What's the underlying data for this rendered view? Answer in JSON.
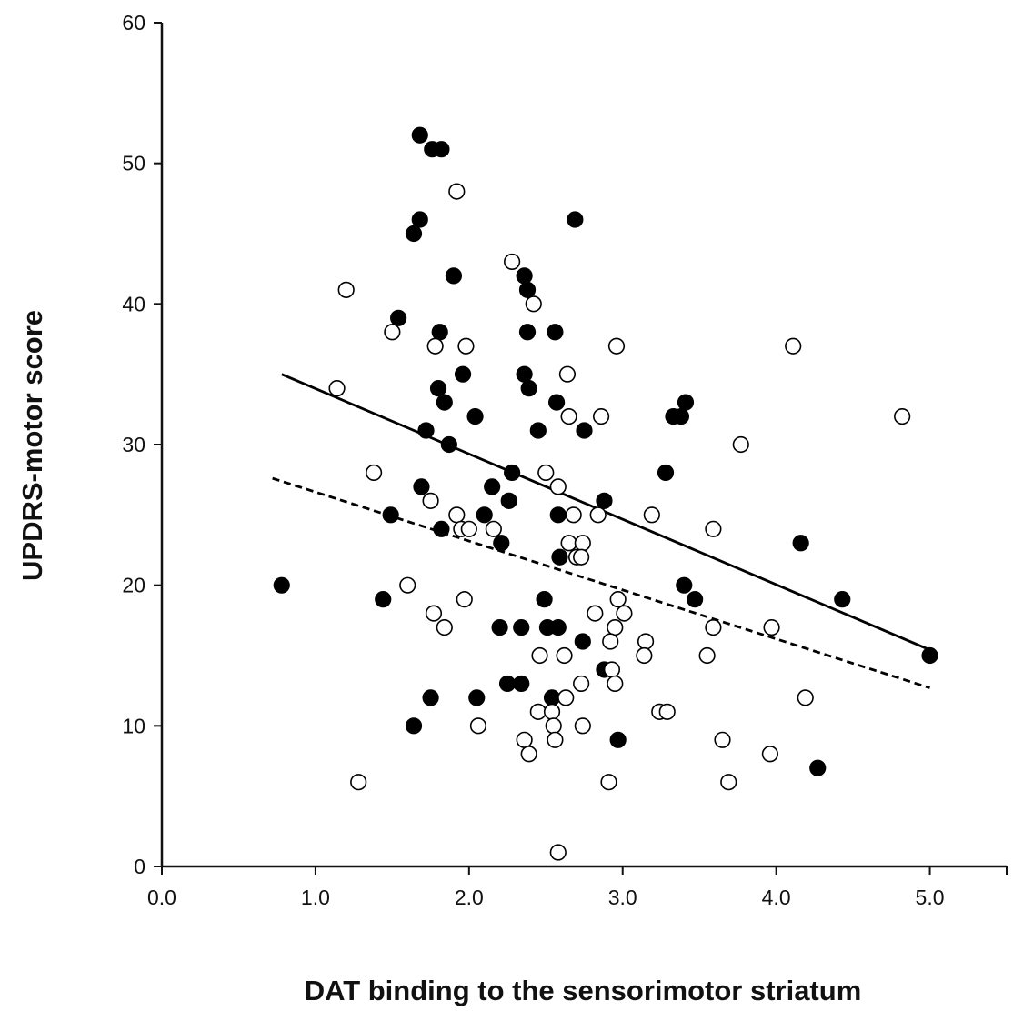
{
  "chart_data": {
    "type": "scatter",
    "title": "",
    "xlabel": "DAT binding to the sensorimotor striatum",
    "ylabel": "UPDRS-motor score",
    "xlim": [
      0.0,
      5.5
    ],
    "ylim": [
      0,
      60
    ],
    "xticks": [
      0.0,
      1.0,
      2.0,
      3.0,
      4.0,
      5.0
    ],
    "xtick_labels": [
      "0.0",
      "1.0",
      "2.0",
      "3.0",
      "4.0",
      "5.0"
    ],
    "yticks": [
      0,
      10,
      20,
      30,
      40,
      50,
      60
    ],
    "ytick_labels": [
      "0",
      "10",
      "20",
      "30",
      "40",
      "50",
      "60"
    ],
    "grid": false,
    "legend": false,
    "series": [
      {
        "marker": "filled",
        "color": "#000000",
        "points": [
          [
            1.68,
            52
          ],
          [
            1.76,
            51
          ],
          [
            1.82,
            51
          ],
          [
            1.68,
            46
          ],
          [
            1.64,
            45
          ],
          [
            2.69,
            46
          ],
          [
            1.9,
            42
          ],
          [
            2.36,
            42
          ],
          [
            2.38,
            41
          ],
          [
            1.54,
            39
          ],
          [
            1.81,
            38
          ],
          [
            2.38,
            38
          ],
          [
            2.56,
            38
          ],
          [
            1.96,
            35
          ],
          [
            2.36,
            35
          ],
          [
            1.8,
            34
          ],
          [
            2.39,
            34
          ],
          [
            1.84,
            33
          ],
          [
            2.57,
            33
          ],
          [
            3.41,
            33
          ],
          [
            2.04,
            32
          ],
          [
            3.33,
            32
          ],
          [
            3.38,
            32
          ],
          [
            1.72,
            31
          ],
          [
            2.45,
            31
          ],
          [
            2.75,
            31
          ],
          [
            1.87,
            30
          ],
          [
            2.28,
            28
          ],
          [
            3.28,
            28
          ],
          [
            1.69,
            27
          ],
          [
            2.15,
            27
          ],
          [
            2.26,
            26
          ],
          [
            2.88,
            26
          ],
          [
            1.49,
            25
          ],
          [
            2.1,
            25
          ],
          [
            2.58,
            25
          ],
          [
            1.82,
            24
          ],
          [
            2.21,
            23
          ],
          [
            4.16,
            23
          ],
          [
            2.59,
            22
          ],
          [
            0.78,
            20
          ],
          [
            3.4,
            20
          ],
          [
            1.44,
            19
          ],
          [
            2.49,
            19
          ],
          [
            3.47,
            19
          ],
          [
            4.43,
            19
          ],
          [
            2.2,
            17
          ],
          [
            2.34,
            17
          ],
          [
            2.51,
            17
          ],
          [
            2.58,
            17
          ],
          [
            2.74,
            16
          ],
          [
            5.0,
            15
          ],
          [
            2.88,
            14
          ],
          [
            2.25,
            13
          ],
          [
            2.34,
            13
          ],
          [
            1.75,
            12
          ],
          [
            2.05,
            12
          ],
          [
            2.54,
            12
          ],
          [
            1.64,
            10
          ],
          [
            2.97,
            9
          ],
          [
            4.27,
            7
          ]
        ]
      },
      {
        "marker": "open",
        "color": "#000000",
        "points": [
          [
            1.92,
            48
          ],
          [
            2.28,
            43
          ],
          [
            1.2,
            41
          ],
          [
            2.42,
            40
          ],
          [
            1.5,
            38
          ],
          [
            1.78,
            37
          ],
          [
            1.98,
            37
          ],
          [
            2.96,
            37
          ],
          [
            4.11,
            37
          ],
          [
            1.14,
            34
          ],
          [
            2.64,
            35
          ],
          [
            2.65,
            32
          ],
          [
            2.86,
            32
          ],
          [
            4.82,
            32
          ],
          [
            3.77,
            30
          ],
          [
            1.38,
            28
          ],
          [
            2.5,
            28
          ],
          [
            2.58,
            27
          ],
          [
            1.75,
            26
          ],
          [
            1.92,
            25
          ],
          [
            2.68,
            25
          ],
          [
            2.84,
            25
          ],
          [
            3.19,
            25
          ],
          [
            1.95,
            24
          ],
          [
            2.0,
            24
          ],
          [
            2.16,
            24
          ],
          [
            3.59,
            24
          ],
          [
            2.65,
            23
          ],
          [
            2.74,
            23
          ],
          [
            2.7,
            22
          ],
          [
            2.73,
            22
          ],
          [
            1.6,
            20
          ],
          [
            1.97,
            19
          ],
          [
            2.97,
            19
          ],
          [
            1.77,
            18
          ],
          [
            2.82,
            18
          ],
          [
            3.01,
            18
          ],
          [
            1.84,
            17
          ],
          [
            2.95,
            17
          ],
          [
            3.59,
            17
          ],
          [
            3.97,
            17
          ],
          [
            2.92,
            16
          ],
          [
            3.15,
            16
          ],
          [
            2.46,
            15
          ],
          [
            2.62,
            15
          ],
          [
            3.14,
            15
          ],
          [
            3.55,
            15
          ],
          [
            2.93,
            14
          ],
          [
            2.73,
            13
          ],
          [
            2.95,
            13
          ],
          [
            2.63,
            12
          ],
          [
            4.19,
            12
          ],
          [
            2.45,
            11
          ],
          [
            2.54,
            11
          ],
          [
            3.24,
            11
          ],
          [
            3.29,
            11
          ],
          [
            2.06,
            10
          ],
          [
            2.55,
            10
          ],
          [
            2.74,
            10
          ],
          [
            2.36,
            9
          ],
          [
            2.56,
            9
          ],
          [
            3.65,
            9
          ],
          [
            2.39,
            8
          ],
          [
            3.96,
            8
          ],
          [
            1.28,
            6
          ],
          [
            2.91,
            6
          ],
          [
            3.69,
            6
          ],
          [
            2.58,
            1
          ]
        ]
      }
    ],
    "trend_lines": [
      {
        "style": "solid",
        "color": "#000000",
        "x": [
          0.78,
          5.0
        ],
        "y": [
          35.0,
          15.4
        ]
      },
      {
        "style": "dashed",
        "color": "#000000",
        "x": [
          0.72,
          5.0
        ],
        "y": [
          27.6,
          12.7
        ]
      }
    ]
  }
}
